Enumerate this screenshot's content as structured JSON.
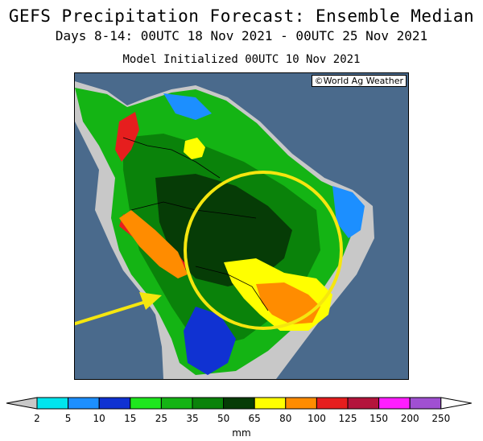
{
  "header": {
    "title": "GEFS Precipitation Forecast: Ensemble Median",
    "subtitle": "Days 8-14: 00UTC 18 Nov 2021 - 00UTC 25 Nov 2021",
    "init": "Model Initialized 00UTC 10 Nov 2021"
  },
  "map": {
    "credit": "©World Ag Weather",
    "ocean_color": "#4a6a8c",
    "annotation_circle_color": "#f5e60f",
    "annotation_arrow_color": "#f5e60f"
  },
  "legend": {
    "unit": "mm",
    "ticks": [
      "2",
      "5",
      "10",
      "15",
      "25",
      "35",
      "50",
      "65",
      "80",
      "100",
      "125",
      "150",
      "200",
      "250"
    ],
    "below_color": "#c8c8c8",
    "colors": [
      "#00e5ee",
      "#1c8fff",
      "#1032d2",
      "#1ee61e",
      "#14b414",
      "#0a820a",
      "#063c06",
      "#ffff00",
      "#ff8c00",
      "#e61e1e",
      "#b4143c",
      "#ff1eff",
      "#a050d2"
    ],
    "above_color": "#ffffff"
  }
}
